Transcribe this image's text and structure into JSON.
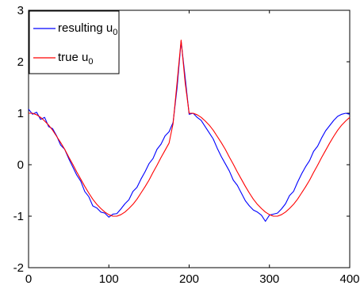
{
  "chart_data": {
    "type": "line",
    "title": "",
    "xlabel": "",
    "ylabel": "",
    "xlim": [
      0,
      400
    ],
    "ylim": [
      -2,
      3
    ],
    "xticks": [
      "0",
      "100",
      "200",
      "300",
      "400"
    ],
    "yticks": [
      "-2",
      "-1",
      "0",
      "1",
      "2",
      "3"
    ],
    "grid": false,
    "legend_position": "top-left",
    "series": [
      {
        "name": "resulting u",
        "name_subscript": "0",
        "color": "#0000ff",
        "x": [
          0,
          5,
          10,
          15,
          20,
          25,
          30,
          35,
          40,
          45,
          50,
          55,
          60,
          65,
          70,
          75,
          80,
          85,
          90,
          95,
          100,
          105,
          110,
          115,
          120,
          125,
          130,
          135,
          140,
          145,
          150,
          155,
          160,
          165,
          170,
          175,
          180,
          185,
          190,
          195,
          200,
          205,
          210,
          215,
          220,
          225,
          230,
          235,
          240,
          245,
          250,
          255,
          260,
          265,
          270,
          275,
          280,
          285,
          290,
          295,
          300,
          305,
          310,
          315,
          320,
          325,
          330,
          335,
          340,
          345,
          350,
          355,
          360,
          365,
          370,
          375,
          380,
          385,
          390,
          395,
          400
        ],
        "y": [
          1.08,
          0.98,
          1.02,
          0.88,
          0.92,
          0.74,
          0.7,
          0.56,
          0.38,
          0.3,
          0.12,
          -0.04,
          -0.2,
          -0.32,
          -0.52,
          -0.62,
          -0.8,
          -0.84,
          -0.92,
          -0.94,
          -1.02,
          -0.96,
          -0.95,
          -0.86,
          -0.76,
          -0.68,
          -0.52,
          -0.44,
          -0.28,
          -0.14,
          0.02,
          0.12,
          0.3,
          0.4,
          0.56,
          0.64,
          0.82,
          1.5,
          2.4,
          1.7,
          0.98,
          1.0,
          0.92,
          0.86,
          0.74,
          0.62,
          0.5,
          0.32,
          0.16,
          0.02,
          -0.12,
          -0.3,
          -0.4,
          -0.55,
          -0.7,
          -0.8,
          -0.88,
          -0.92,
          -0.98,
          -1.1,
          -0.98,
          -0.96,
          -0.94,
          -0.86,
          -0.76,
          -0.6,
          -0.52,
          -0.34,
          -0.18,
          -0.04,
          0.08,
          0.26,
          0.36,
          0.52,
          0.66,
          0.76,
          0.86,
          0.94,
          0.98,
          1.0,
          0.98
        ]
      },
      {
        "name": "true u",
        "name_subscript": "0",
        "color": "#ff0000",
        "x": [
          0,
          5,
          10,
          15,
          20,
          25,
          30,
          35,
          40,
          45,
          50,
          55,
          60,
          65,
          70,
          75,
          80,
          85,
          90,
          95,
          100,
          105,
          110,
          115,
          120,
          125,
          130,
          135,
          140,
          145,
          150,
          155,
          160,
          165,
          170,
          175,
          180,
          185,
          190,
          195,
          200,
          205,
          210,
          215,
          220,
          225,
          230,
          235,
          240,
          245,
          250,
          255,
          260,
          265,
          270,
          275,
          280,
          285,
          290,
          295,
          300,
          305,
          310,
          315,
          320,
          325,
          330,
          335,
          340,
          345,
          350,
          355,
          360,
          365,
          370,
          375,
          380,
          385,
          390,
          395,
          400
        ],
        "y": [
          1.0,
          1.0,
          0.97,
          0.92,
          0.85,
          0.77,
          0.67,
          0.55,
          0.43,
          0.3,
          0.15,
          0.01,
          -0.14,
          -0.28,
          -0.42,
          -0.55,
          -0.67,
          -0.77,
          -0.85,
          -0.92,
          -0.97,
          -1.0,
          -1.0,
          -0.97,
          -0.92,
          -0.85,
          -0.77,
          -0.67,
          -0.55,
          -0.43,
          -0.3,
          -0.15,
          -0.01,
          0.14,
          0.28,
          0.42,
          0.8,
          1.6,
          2.42,
          1.6,
          1.0,
          1.0,
          0.97,
          0.92,
          0.85,
          0.77,
          0.67,
          0.55,
          0.43,
          0.3,
          0.15,
          0.01,
          -0.14,
          -0.28,
          -0.42,
          -0.55,
          -0.67,
          -0.77,
          -0.85,
          -0.92,
          -0.97,
          -1.0,
          -1.0,
          -0.97,
          -0.92,
          -0.85,
          -0.77,
          -0.67,
          -0.55,
          -0.43,
          -0.3,
          -0.15,
          -0.01,
          0.14,
          0.28,
          0.42,
          0.55,
          0.67,
          0.77,
          0.85,
          0.92
        ]
      }
    ]
  }
}
